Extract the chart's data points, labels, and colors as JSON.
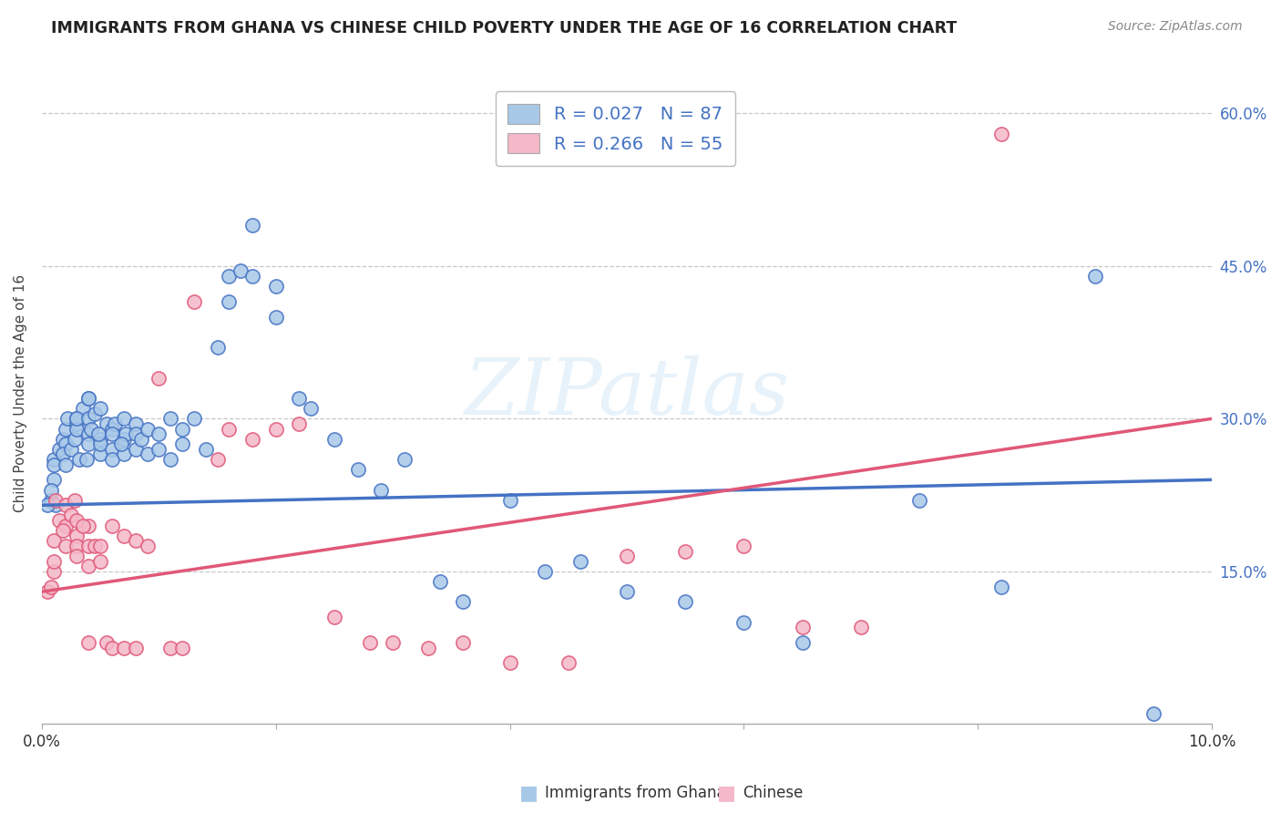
{
  "title": "IMMIGRANTS FROM GHANA VS CHINESE CHILD POVERTY UNDER THE AGE OF 16 CORRELATION CHART",
  "source": "Source: ZipAtlas.com",
  "ylabel": "Child Poverty Under the Age of 16",
  "x_min": 0.0,
  "x_max": 0.1,
  "y_min": 0.0,
  "y_max": 0.65,
  "ghana_color": "#a8c8e8",
  "chinese_color": "#f4b8c8",
  "ghana_line_color": "#4472c4",
  "chinese_line_color": "#e05878",
  "ghana_R": 0.027,
  "ghana_N": 87,
  "chinese_R": 0.266,
  "chinese_N": 55,
  "legend_label_ghana": "Immigrants from Ghana",
  "legend_label_chinese": "Chinese",
  "watermark_text": "ZIPatlas",
  "background_color": "#ffffff",
  "grid_color": "#c8c8c8",
  "right_tick_color": "#4472c4",
  "ghana_line_intercept": 0.215,
  "ghana_line_slope": 0.25,
  "chinese_line_intercept": 0.13,
  "chinese_line_slope": 1.7,
  "ghana_x": [
    0.0008,
    0.001,
    0.0012,
    0.001,
    0.0015,
    0.0008,
    0.0005,
    0.001,
    0.0018,
    0.002,
    0.002,
    0.0022,
    0.0018,
    0.0025,
    0.002,
    0.003,
    0.003,
    0.0028,
    0.0035,
    0.003,
    0.003,
    0.0032,
    0.004,
    0.004,
    0.004,
    0.0045,
    0.004,
    0.0038,
    0.004,
    0.0042,
    0.005,
    0.005,
    0.005,
    0.0055,
    0.005,
    0.0048,
    0.006,
    0.006,
    0.0062,
    0.006,
    0.006,
    0.007,
    0.007,
    0.0072,
    0.007,
    0.0068,
    0.008,
    0.008,
    0.008,
    0.0085,
    0.009,
    0.009,
    0.01,
    0.01,
    0.011,
    0.011,
    0.012,
    0.012,
    0.013,
    0.014,
    0.015,
    0.016,
    0.016,
    0.017,
    0.018,
    0.018,
    0.02,
    0.02,
    0.022,
    0.023,
    0.025,
    0.027,
    0.029,
    0.031,
    0.034,
    0.036,
    0.04,
    0.043,
    0.046,
    0.05,
    0.055,
    0.06,
    0.065,
    0.075,
    0.082,
    0.09,
    0.095
  ],
  "ghana_y": [
    0.22,
    0.24,
    0.215,
    0.26,
    0.27,
    0.23,
    0.215,
    0.255,
    0.28,
    0.275,
    0.29,
    0.3,
    0.265,
    0.27,
    0.255,
    0.295,
    0.3,
    0.28,
    0.31,
    0.29,
    0.3,
    0.26,
    0.32,
    0.3,
    0.285,
    0.305,
    0.275,
    0.26,
    0.32,
    0.29,
    0.31,
    0.28,
    0.265,
    0.295,
    0.275,
    0.285,
    0.29,
    0.27,
    0.295,
    0.285,
    0.26,
    0.28,
    0.3,
    0.285,
    0.265,
    0.275,
    0.295,
    0.285,
    0.27,
    0.28,
    0.29,
    0.265,
    0.285,
    0.27,
    0.3,
    0.26,
    0.29,
    0.275,
    0.3,
    0.27,
    0.37,
    0.415,
    0.44,
    0.445,
    0.49,
    0.44,
    0.43,
    0.4,
    0.32,
    0.31,
    0.28,
    0.25,
    0.23,
    0.26,
    0.14,
    0.12,
    0.22,
    0.15,
    0.16,
    0.13,
    0.12,
    0.1,
    0.08,
    0.22,
    0.135,
    0.44,
    0.01
  ],
  "chinese_x": [
    0.0005,
    0.001,
    0.001,
    0.0012,
    0.0008,
    0.0015,
    0.001,
    0.002,
    0.002,
    0.0018,
    0.002,
    0.0025,
    0.003,
    0.003,
    0.0028,
    0.003,
    0.003,
    0.004,
    0.004,
    0.004,
    0.0045,
    0.004,
    0.0035,
    0.005,
    0.005,
    0.0055,
    0.006,
    0.006,
    0.007,
    0.007,
    0.008,
    0.008,
    0.009,
    0.01,
    0.011,
    0.012,
    0.013,
    0.015,
    0.016,
    0.018,
    0.02,
    0.022,
    0.025,
    0.028,
    0.03,
    0.033,
    0.036,
    0.04,
    0.045,
    0.05,
    0.055,
    0.06,
    0.065,
    0.07,
    0.082
  ],
  "chinese_y": [
    0.13,
    0.15,
    0.16,
    0.22,
    0.135,
    0.2,
    0.18,
    0.195,
    0.215,
    0.19,
    0.175,
    0.205,
    0.185,
    0.175,
    0.22,
    0.165,
    0.2,
    0.175,
    0.155,
    0.195,
    0.175,
    0.08,
    0.195,
    0.175,
    0.16,
    0.08,
    0.195,
    0.075,
    0.185,
    0.075,
    0.18,
    0.075,
    0.175,
    0.34,
    0.075,
    0.075,
    0.415,
    0.26,
    0.29,
    0.28,
    0.29,
    0.295,
    0.105,
    0.08,
    0.08,
    0.075,
    0.08,
    0.06,
    0.06,
    0.165,
    0.17,
    0.175,
    0.095,
    0.095,
    0.58
  ]
}
